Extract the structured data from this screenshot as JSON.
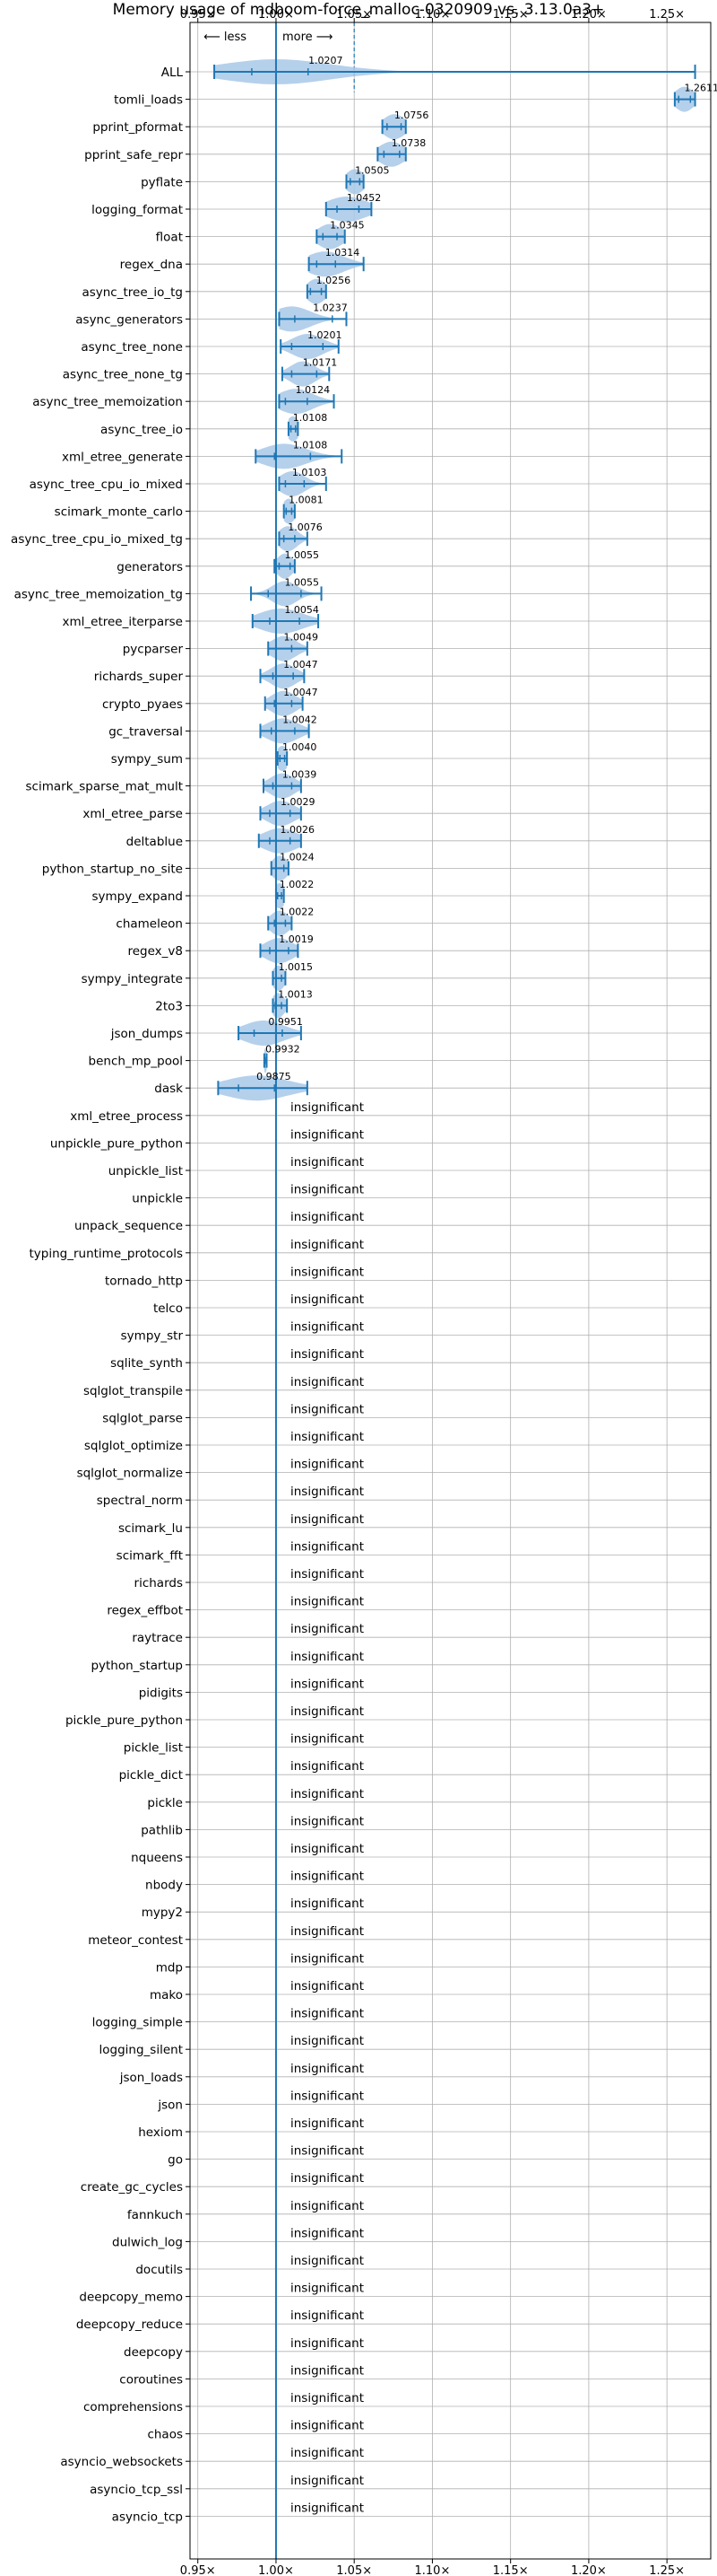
{
  "chart_data": {
    "type": "violin",
    "title": "Memory usage of mdboom-force_malloc-0320909 vs. 3.13.0a3+",
    "xlabel": "",
    "ylabel": "",
    "xlim": [
      0.945,
      1.278
    ],
    "x_ticks": [
      0.95,
      1.0,
      1.05,
      1.1,
      1.15,
      1.2,
      1.25
    ],
    "x_tick_labels": [
      "0.95×",
      "1.00×",
      "1.05×",
      "1.10×",
      "1.15×",
      "1.20×",
      "1.25×"
    ],
    "annotation_less": "⟵ less",
    "annotation_more": "more ⟶",
    "reference_line": 1.0,
    "grid": true,
    "insignificant_label": "insignificant",
    "colors": {
      "violin": "#a8c8e8",
      "line": "#1f77b4"
    },
    "benchmarks": [
      {
        "name": "ALL",
        "value": 1.0207,
        "label": "1.0207",
        "min": 0.9605,
        "max": 1.268,
        "q_low": 0.9845,
        "q_high": 1.0205,
        "mid": 1.0,
        "spread": 0.035
      },
      {
        "name": "tomli_loads",
        "value": 1.2611,
        "label": "1.2611",
        "min": 1.255,
        "max": 1.268,
        "q_low": 1.2575,
        "q_high": 1.265,
        "mid": 1.2611,
        "spread": 0.006
      },
      {
        "name": "pprint_pformat",
        "value": 1.0756,
        "label": "1.0756",
        "min": 1.068,
        "max": 1.083,
        "q_low": 1.071,
        "q_high": 1.08,
        "mid": 1.0756,
        "spread": 0.007
      },
      {
        "name": "pprint_safe_repr",
        "value": 1.0738,
        "label": "1.0738",
        "min": 1.065,
        "max": 1.083,
        "q_low": 1.069,
        "q_high": 1.079,
        "mid": 1.0738,
        "spread": 0.008
      },
      {
        "name": "pyflate",
        "value": 1.0505,
        "label": "1.0505",
        "min": 1.045,
        "max": 1.056,
        "q_low": 1.0475,
        "q_high": 1.0535,
        "mid": 1.0505,
        "spread": 0.006
      },
      {
        "name": "logging_format",
        "value": 1.0452,
        "label": "1.0452",
        "min": 1.032,
        "max": 1.061,
        "q_low": 1.039,
        "q_high": 1.053,
        "mid": 1.0452,
        "spread": 0.013
      },
      {
        "name": "float",
        "value": 1.0345,
        "label": "1.0345",
        "min": 1.026,
        "max": 1.044,
        "q_low": 1.03,
        "q_high": 1.039,
        "mid": 1.0345,
        "spread": 0.008
      },
      {
        "name": "regex_dna",
        "value": 1.0314,
        "label": "1.0314",
        "min": 1.021,
        "max": 1.056,
        "q_low": 1.026,
        "q_high": 1.038,
        "mid": 1.0314,
        "spread": 0.012
      },
      {
        "name": "async_tree_io_tg",
        "value": 1.0256,
        "label": "1.0256",
        "min": 1.02,
        "max": 1.032,
        "q_low": 1.022,
        "q_high": 1.029,
        "mid": 1.0256,
        "spread": 0.006
      },
      {
        "name": "async_generators",
        "value": 1.0237,
        "label": "1.0237",
        "min": 1.002,
        "max": 1.045,
        "q_low": 1.012,
        "q_high": 1.036,
        "mid": 1.01,
        "spread": 0.012
      },
      {
        "name": "async_tree_none",
        "value": 1.0201,
        "label": "1.0201",
        "min": 1.003,
        "max": 1.04,
        "q_low": 1.01,
        "q_high": 1.03,
        "mid": 1.0201,
        "spread": 0.01
      },
      {
        "name": "async_tree_none_tg",
        "value": 1.0171,
        "label": "1.0171",
        "min": 1.004,
        "max": 1.034,
        "q_low": 1.01,
        "q_high": 1.026,
        "mid": 1.0171,
        "spread": 0.008
      },
      {
        "name": "async_tree_memoization",
        "value": 1.0124,
        "label": "1.0124",
        "min": 1.002,
        "max": 1.037,
        "q_low": 1.006,
        "q_high": 1.02,
        "mid": 1.0124,
        "spread": 0.011
      },
      {
        "name": "async_tree_io",
        "value": 1.0108,
        "label": "1.0108",
        "min": 1.008,
        "max": 1.014,
        "q_low": 1.0095,
        "q_high": 1.0125,
        "mid": 1.0108,
        "spread": 0.004
      },
      {
        "name": "xml_etree_generate",
        "value": 1.0108,
        "label": "1.0108",
        "min": 0.987,
        "max": 1.042,
        "q_low": 0.999,
        "q_high": 1.022,
        "mid": 1.005,
        "spread": 0.014
      },
      {
        "name": "async_tree_cpu_io_mixed",
        "value": 1.0103,
        "label": "1.0103",
        "min": 1.002,
        "max": 1.032,
        "q_low": 1.006,
        "q_high": 1.018,
        "mid": 1.0103,
        "spread": 0.008
      },
      {
        "name": "scimark_monte_carlo",
        "value": 1.0081,
        "label": "1.0081",
        "min": 1.005,
        "max": 1.012,
        "q_low": 1.0065,
        "q_high": 1.01,
        "mid": 1.0081,
        "spread": 0.004
      },
      {
        "name": "async_tree_cpu_io_mixed_tg",
        "value": 1.0076,
        "label": "1.0076",
        "min": 1.002,
        "max": 1.02,
        "q_low": 1.005,
        "q_high": 1.012,
        "mid": 1.0076,
        "spread": 0.006
      },
      {
        "name": "generators",
        "value": 1.0055,
        "label": "1.0055",
        "min": 0.999,
        "max": 1.012,
        "q_low": 1.002,
        "q_high": 1.009,
        "mid": 1.0055,
        "spread": 0.005
      },
      {
        "name": "async_tree_memoization_tg",
        "value": 1.0055,
        "label": "1.0055",
        "min": 0.984,
        "max": 1.029,
        "q_low": 0.995,
        "q_high": 1.016,
        "mid": 1.0055,
        "spread": 0.008
      },
      {
        "name": "xml_etree_iterparse",
        "value": 1.0054,
        "label": "1.0054",
        "min": 0.985,
        "max": 1.027,
        "q_low": 0.996,
        "q_high": 1.015,
        "mid": 1.003,
        "spread": 0.014
      },
      {
        "name": "pycparser",
        "value": 1.0049,
        "label": "1.0049",
        "min": 0.995,
        "max": 1.02,
        "q_low": 1.0,
        "q_high": 1.01,
        "mid": 1.0049,
        "spread": 0.008
      },
      {
        "name": "richards_super",
        "value": 1.0047,
        "label": "1.0047",
        "min": 0.99,
        "max": 1.018,
        "q_low": 0.998,
        "q_high": 1.011,
        "mid": 1.0047,
        "spread": 0.008
      },
      {
        "name": "crypto_pyaes",
        "value": 1.0047,
        "label": "1.0047",
        "min": 0.993,
        "max": 1.017,
        "q_low": 0.999,
        "q_high": 1.01,
        "mid": 1.0047,
        "spread": 0.008
      },
      {
        "name": "gc_traversal",
        "value": 1.0042,
        "label": "1.0042",
        "min": 0.99,
        "max": 1.021,
        "q_low": 0.997,
        "q_high": 1.012,
        "mid": 1.0042,
        "spread": 0.01
      },
      {
        "name": "sympy_sum",
        "value": 1.004,
        "label": "1.0040",
        "min": 1.001,
        "max": 1.007,
        "q_low": 1.0025,
        "q_high": 1.0055,
        "mid": 1.004,
        "spread": 0.004
      },
      {
        "name": "scimark_sparse_mat_mult",
        "value": 1.0039,
        "label": "1.0039",
        "min": 0.992,
        "max": 1.016,
        "q_low": 0.998,
        "q_high": 1.01,
        "mid": 1.0039,
        "spread": 0.008
      },
      {
        "name": "xml_etree_parse",
        "value": 1.0029,
        "label": "1.0029",
        "min": 0.99,
        "max": 1.016,
        "q_low": 0.996,
        "q_high": 1.009,
        "mid": 1.0029,
        "spread": 0.009
      },
      {
        "name": "deltablue",
        "value": 1.0026,
        "label": "1.0026",
        "min": 0.989,
        "max": 1.016,
        "q_low": 0.996,
        "q_high": 1.009,
        "mid": 1.0026,
        "spread": 0.011
      },
      {
        "name": "python_startup_no_site",
        "value": 1.0024,
        "label": "1.0024",
        "min": 0.997,
        "max": 1.008,
        "q_low": 1.0,
        "q_high": 1.005,
        "mid": 1.0024,
        "spread": 0.005
      },
      {
        "name": "sympy_expand",
        "value": 1.0022,
        "label": "1.0022",
        "min": 1.0,
        "max": 1.005,
        "q_low": 1.001,
        "q_high": 1.0035,
        "mid": 1.0022,
        "spread": 0.004
      },
      {
        "name": "chameleon",
        "value": 1.0022,
        "label": "1.0022",
        "min": 0.995,
        "max": 1.01,
        "q_low": 0.999,
        "q_high": 1.006,
        "mid": 1.0022,
        "spread": 0.006
      },
      {
        "name": "regex_v8",
        "value": 1.0019,
        "label": "1.0019",
        "min": 0.99,
        "max": 1.014,
        "q_low": 0.996,
        "q_high": 1.008,
        "mid": 1.0019,
        "spread": 0.009
      },
      {
        "name": "sympy_integrate",
        "value": 1.0015,
        "label": "1.0015",
        "min": 0.998,
        "max": 1.006,
        "q_low": 1.0,
        "q_high": 1.0035,
        "mid": 1.0015,
        "spread": 0.004
      },
      {
        "name": "2to3",
        "value": 1.0013,
        "label": "1.0013",
        "min": 0.998,
        "max": 1.007,
        "q_low": 0.9995,
        "q_high": 1.0035,
        "mid": 1.0013,
        "spread": 0.004
      },
      {
        "name": "json_dumps",
        "value": 0.9951,
        "label": "0.9951",
        "min": 0.976,
        "max": 1.016,
        "q_low": 0.986,
        "q_high": 1.004,
        "mid": 0.992,
        "spread": 0.013
      },
      {
        "name": "bench_mp_pool",
        "value": 0.9932,
        "label": "0.9932",
        "min": 0.9925,
        "max": 0.994,
        "q_low": 0.9928,
        "q_high": 0.9937,
        "mid": 0.9932,
        "spread": 0.001
      },
      {
        "name": "dask",
        "value": 0.9875,
        "label": "0.9875",
        "min": 0.963,
        "max": 1.02,
        "q_low": 0.976,
        "q_high": 0.999,
        "mid": 0.9875,
        "spread": 0.02
      },
      {
        "name": "xml_etree_process"
      },
      {
        "name": "unpickle_pure_python"
      },
      {
        "name": "unpickle_list"
      },
      {
        "name": "unpickle"
      },
      {
        "name": "unpack_sequence"
      },
      {
        "name": "typing_runtime_protocols"
      },
      {
        "name": "tornado_http"
      },
      {
        "name": "telco"
      },
      {
        "name": "sympy_str"
      },
      {
        "name": "sqlite_synth"
      },
      {
        "name": "sqlglot_transpile"
      },
      {
        "name": "sqlglot_parse"
      },
      {
        "name": "sqlglot_optimize"
      },
      {
        "name": "sqlglot_normalize"
      },
      {
        "name": "spectral_norm"
      },
      {
        "name": "scimark_lu"
      },
      {
        "name": "scimark_fft"
      },
      {
        "name": "richards"
      },
      {
        "name": "regex_effbot"
      },
      {
        "name": "raytrace"
      },
      {
        "name": "python_startup"
      },
      {
        "name": "pidigits"
      },
      {
        "name": "pickle_pure_python"
      },
      {
        "name": "pickle_list"
      },
      {
        "name": "pickle_dict"
      },
      {
        "name": "pickle"
      },
      {
        "name": "pathlib"
      },
      {
        "name": "nqueens"
      },
      {
        "name": "nbody"
      },
      {
        "name": "mypy2"
      },
      {
        "name": "meteor_contest"
      },
      {
        "name": "mdp"
      },
      {
        "name": "mako"
      },
      {
        "name": "logging_simple"
      },
      {
        "name": "logging_silent"
      },
      {
        "name": "json_loads"
      },
      {
        "name": "json"
      },
      {
        "name": "hexiom"
      },
      {
        "name": "go"
      },
      {
        "name": "create_gc_cycles"
      },
      {
        "name": "fannkuch"
      },
      {
        "name": "dulwich_log"
      },
      {
        "name": "docutils"
      },
      {
        "name": "deepcopy_memo"
      },
      {
        "name": "deepcopy_reduce"
      },
      {
        "name": "deepcopy"
      },
      {
        "name": "coroutines"
      },
      {
        "name": "comprehensions"
      },
      {
        "name": "chaos"
      },
      {
        "name": "asyncio_websockets"
      },
      {
        "name": "asyncio_tcp_ssl"
      },
      {
        "name": "asyncio_tcp"
      }
    ]
  }
}
